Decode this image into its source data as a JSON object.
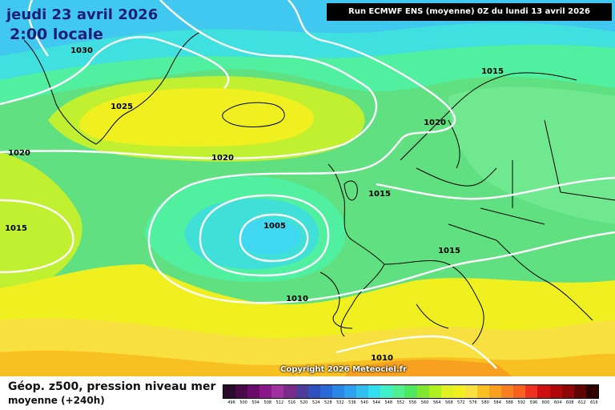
{
  "header": {
    "date": "jeudi 23 avril 2026",
    "time": "2:00 locale",
    "run_info": "Run ECMWF ENS (moyenne) 0Z du lundi 13 avril 2026"
  },
  "isobar_labels": [
    "1030",
    "1025",
    "1020",
    "1020",
    "1015",
    "1005",
    "1015",
    "1020",
    "1015",
    "1015",
    "1010",
    "1010"
  ],
  "copyright": "Copyright 2026 Meteociel.fr",
  "legend": {
    "title": "Géop. z500, pression niveau mer",
    "subtitle": "moyenne  (+240h)",
    "values": [
      "496",
      "500",
      "504",
      "508",
      "512",
      "516",
      "520",
      "524",
      "528",
      "532",
      "536",
      "540",
      "544",
      "548",
      "552",
      "556",
      "560",
      "564",
      "568",
      "572",
      "576",
      "580",
      "584",
      "588",
      "592",
      "596",
      "600",
      "604",
      "608",
      "612",
      "616"
    ],
    "colors": [
      "#2b0a2b",
      "#4a0a4a",
      "#6a0a6a",
      "#8a188a",
      "#a030a0",
      "#7a2a8a",
      "#503a9a",
      "#3050c0",
      "#2a6ad8",
      "#2a86e8",
      "#30a0f0",
      "#30c0f0",
      "#30e0f0",
      "#40f0c8",
      "#50f090",
      "#50e860",
      "#80e830",
      "#b0f020",
      "#e0f020",
      "#f0f020",
      "#f8e040",
      "#f8c020",
      "#f8a020",
      "#f88020",
      "#f86020",
      "#f03020",
      "#d01010",
      "#b00808",
      "#900505",
      "#600303",
      "#300000"
    ]
  }
}
